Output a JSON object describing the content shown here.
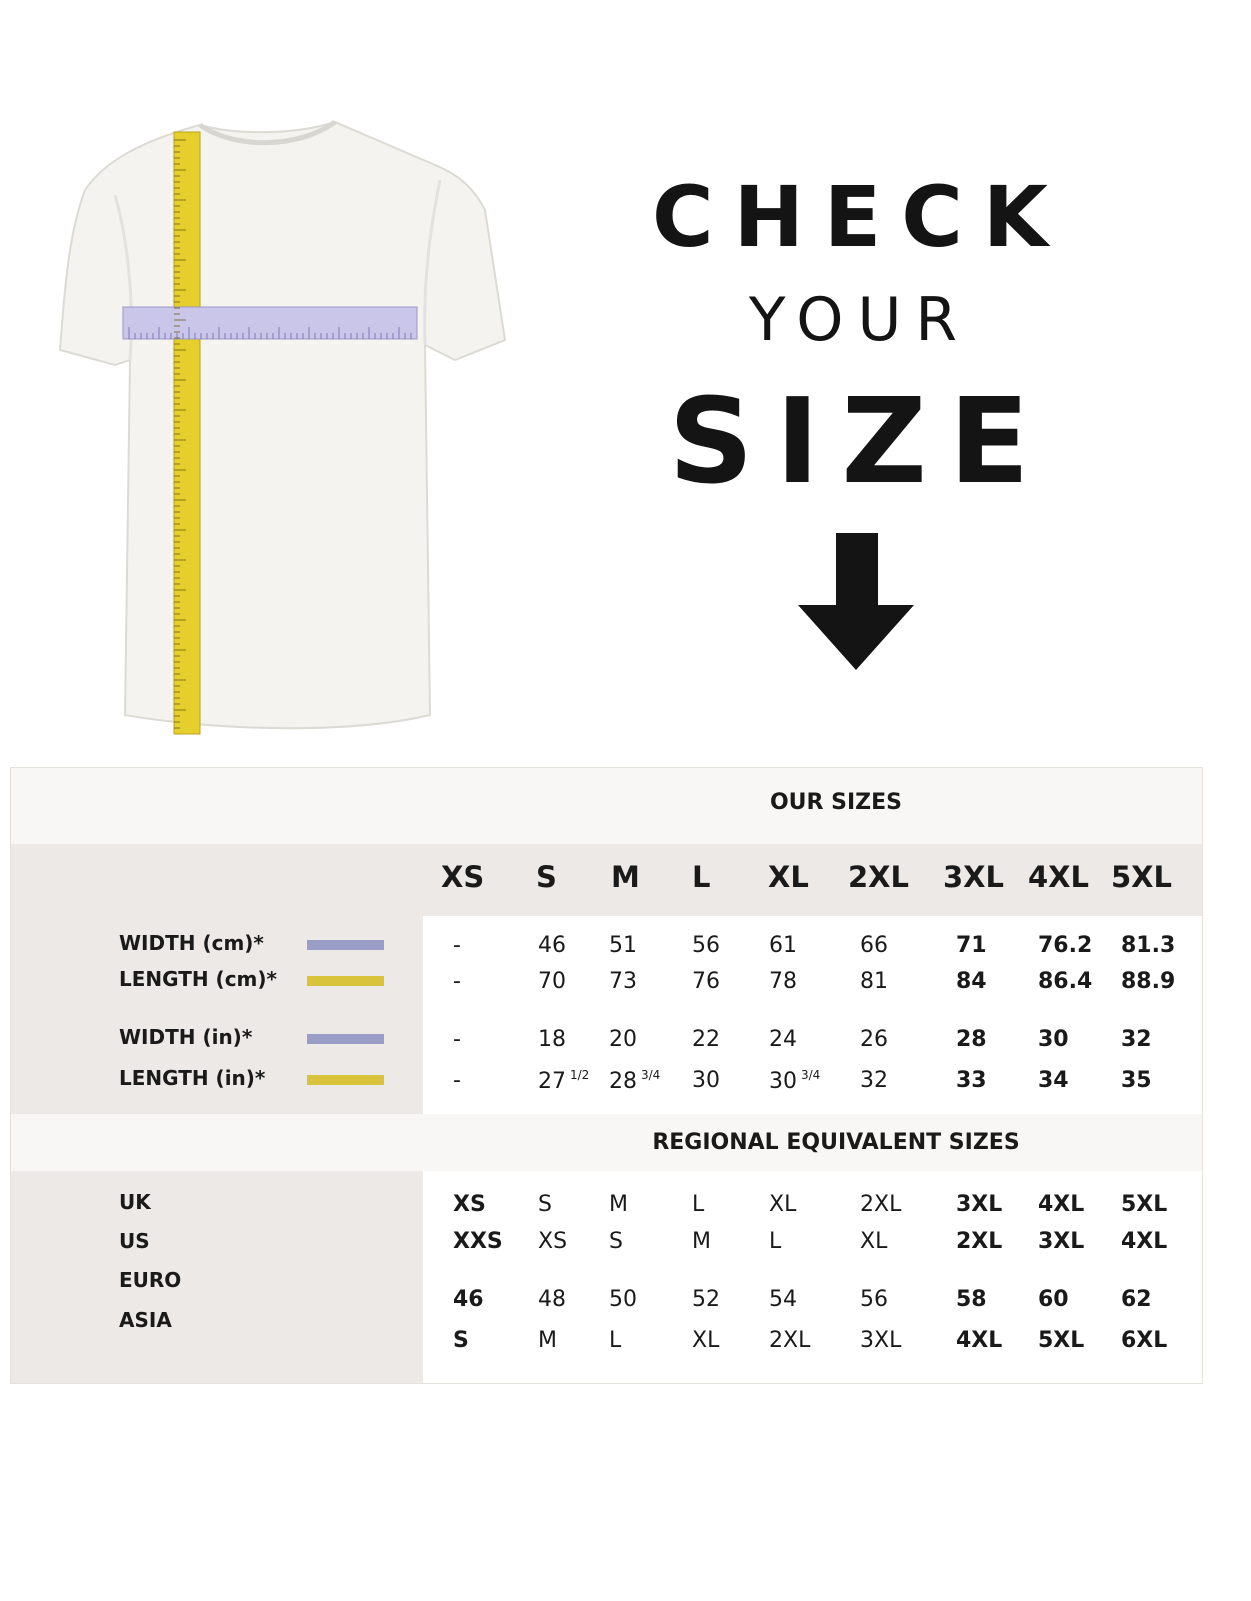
{
  "headline": {
    "line1": "CHECK",
    "line2": "YOUR",
    "line3": "SIZE"
  },
  "colors": {
    "width_tape": "#9a9dc8",
    "length_tape": "#d9c33a",
    "panel": "#ede9e6"
  },
  "our_sizes": {
    "title": "OUR SIZES",
    "sizes": [
      "XS",
      "S",
      "M",
      "L",
      "XL",
      "2XL",
      "3XL",
      "4XL",
      "5XL"
    ],
    "rows": [
      {
        "label": "WIDTH (cm)*",
        "tape": "width",
        "values": [
          "-",
          "46",
          "51",
          "56",
          "61",
          "66",
          "71",
          "76.2",
          "81.3"
        ]
      },
      {
        "label": "LENGTH (cm)*",
        "tape": "length",
        "values": [
          "-",
          "70",
          "73",
          "76",
          "78",
          "81",
          "84",
          "86.4",
          "88.9"
        ]
      },
      {
        "label": "WIDTH (in)*",
        "tape": "width",
        "values": [
          "-",
          "18",
          "20",
          "22",
          "24",
          "26",
          "28",
          "30",
          "32"
        ]
      },
      {
        "label": "LENGTH (in)*",
        "tape": "length",
        "values": [
          "-",
          "27 1/2",
          "28 3/4",
          "30",
          "30 3/4",
          "32",
          "33",
          "34",
          "35"
        ]
      }
    ]
  },
  "regional": {
    "title": "REGIONAL EQUIVALENT SIZES",
    "rows": [
      {
        "label": "UK",
        "values": [
          "XS",
          "S",
          "M",
          "L",
          "XL",
          "2XL",
          "3XL",
          "4XL",
          "5XL"
        ]
      },
      {
        "label": "US",
        "values": [
          "XXS",
          "XS",
          "S",
          "M",
          "L",
          "XL",
          "2XL",
          "3XL",
          "4XL"
        ]
      },
      {
        "label": "EURO",
        "values": [
          "46",
          "48",
          "50",
          "52",
          "54",
          "56",
          "58",
          "60",
          "62"
        ]
      },
      {
        "label": "ASIA",
        "values": [
          "S",
          "M",
          "L",
          "XL",
          "2XL",
          "3XL",
          "4XL",
          "5XL",
          "6XL"
        ]
      }
    ]
  }
}
